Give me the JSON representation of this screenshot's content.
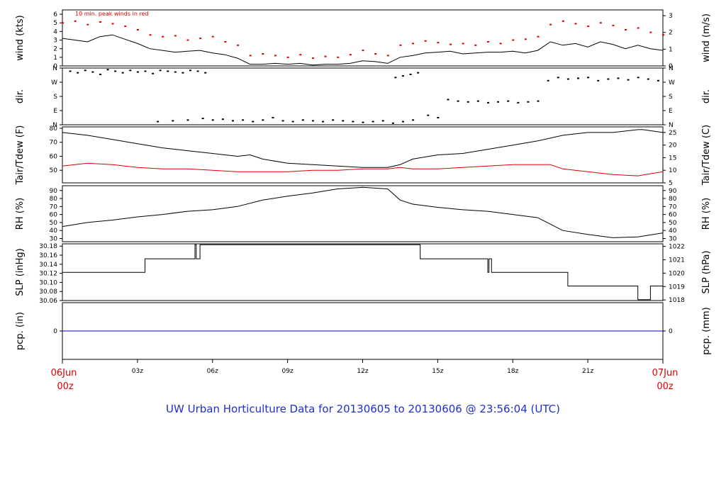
{
  "title": "UW Urban Horticulture Data for 20130605  to  20130606 @ 23:56:04  (UTC)",
  "annotation": "10 min. peak winds in red",
  "x_axis": {
    "start_label_top": "06Jun",
    "start_label_bottom": "00z",
    "end_label_top": "07Jun",
    "end_label_bottom": "00z",
    "ticks": [
      "03z",
      "06z",
      "09z",
      "12z",
      "15z",
      "18z",
      "21z"
    ],
    "tick_hours": [
      3,
      6,
      9,
      12,
      15,
      18,
      21
    ],
    "range_hours": [
      0,
      24
    ]
  },
  "colors": {
    "black": "#000000",
    "red": "#dd0000",
    "blue": "#0000cc",
    "title": "#1f2fd0",
    "date": "#dd0000"
  },
  "chart_data": [
    {
      "type": "line",
      "id": "wind",
      "ylabel_left": "wind (kts)",
      "ylabel_right": "wind (m/s)",
      "ylim": [
        0,
        6.5
      ],
      "yticks_left": [
        "0",
        "1",
        "2",
        "3",
        "4",
        "5",
        "6"
      ],
      "yticks_left_values": [
        0,
        1,
        2,
        3,
        4,
        5,
        6
      ],
      "yticks_right": [
        "0",
        "1",
        "2",
        "3"
      ],
      "yticks_right_values_kts": [
        0,
        1.944,
        3.888,
        5.832
      ],
      "series": [
        {
          "role": "mean",
          "color": "#000000",
          "x": [
            0,
            0.5,
            1,
            1.5,
            2,
            2.5,
            3,
            3.5,
            4,
            4.5,
            5,
            5.5,
            6,
            6.5,
            7,
            7.5,
            8,
            8.5,
            9,
            9.5,
            10,
            10.5,
            11,
            11.5,
            12,
            12.5,
            13,
            13.5,
            14,
            14.5,
            15,
            15.5,
            16,
            16.5,
            17,
            17.5,
            18,
            18.5,
            19,
            19.5,
            20,
            20.5,
            21,
            21.5,
            22,
            22.5,
            23,
            23.5,
            24
          ],
          "y": [
            3.2,
            3.0,
            2.8,
            3.4,
            3.6,
            3.1,
            2.6,
            2.0,
            1.8,
            1.6,
            1.7,
            1.8,
            1.5,
            1.3,
            0.9,
            0.2,
            0.2,
            0.3,
            0.2,
            0.3,
            0.1,
            0.2,
            0.2,
            0.3,
            0.6,
            0.5,
            0.3,
            1.0,
            1.2,
            1.5,
            1.6,
            1.7,
            1.4,
            1.5,
            1.6,
            1.6,
            1.7,
            1.5,
            1.8,
            2.8,
            2.4,
            2.6,
            2.2,
            2.8,
            2.5,
            2.0,
            2.4,
            2.0,
            1.8
          ]
        },
        {
          "role": "peak",
          "color": "#dd0000",
          "x": [
            0,
            0.5,
            1,
            1.5,
            2,
            2.5,
            3,
            3.5,
            4,
            4.5,
            5,
            5.5,
            6,
            6.5,
            7,
            7.5,
            8,
            8.5,
            9,
            9.5,
            10,
            10.5,
            11,
            11.5,
            12,
            12.5,
            13,
            13.5,
            14,
            14.5,
            15,
            15.5,
            16,
            16.5,
            17,
            17.5,
            18,
            18.5,
            19,
            19.5,
            20,
            20.5,
            21,
            21.5,
            22,
            22.5,
            23,
            23.5,
            24
          ],
          "y": [
            5.0,
            5.2,
            4.8,
            5.1,
            4.9,
            4.6,
            4.2,
            3.6,
            3.4,
            3.5,
            3.0,
            3.2,
            3.4,
            2.8,
            2.4,
            1.2,
            1.4,
            1.2,
            1.0,
            1.3,
            0.9,
            1.1,
            1.0,
            1.3,
            1.8,
            1.4,
            1.2,
            2.4,
            2.6,
            2.9,
            2.7,
            2.5,
            2.6,
            2.4,
            2.8,
            2.6,
            3.0,
            3.1,
            3.4,
            4.8,
            5.2,
            4.9,
            4.6,
            5.0,
            4.7,
            4.2,
            4.4,
            3.9,
            3.6
          ]
        }
      ]
    },
    {
      "type": "scatter",
      "id": "dir",
      "ylabel_left": "dir.",
      "ylabel_right": "dir.",
      "ylim": [
        0,
        360
      ],
      "yticks": [
        "N",
        "W",
        "S",
        "E",
        "N"
      ],
      "yticks_values": [
        360,
        270,
        180,
        90,
        0
      ],
      "series": [
        {
          "color": "#000000",
          "x": [
            0.3,
            0.6,
            0.9,
            1.2,
            1.5,
            1.8,
            2.1,
            2.4,
            2.7,
            3.0,
            3.3,
            3.6,
            3.9,
            4.2,
            4.5,
            4.8,
            5.1,
            5.4,
            5.7,
            3.8,
            4.4,
            5.0,
            5.6,
            6.0,
            6.4,
            6.8,
            7.2,
            7.6,
            8.0,
            8.4,
            8.8,
            9.2,
            9.6,
            10.0,
            10.4,
            10.8,
            11.2,
            11.6,
            12.0,
            12.4,
            12.8,
            13.2,
            13.6,
            14.0,
            13.3,
            13.6,
            13.9,
            14.2,
            14.6,
            15.0,
            15.4,
            15.8,
            16.2,
            16.6,
            17.0,
            17.4,
            17.8,
            18.2,
            18.6,
            19.0,
            19.4,
            19.8,
            20.2,
            20.6,
            21.0,
            21.4,
            21.8,
            22.2,
            22.6,
            23.0,
            23.4,
            23.8
          ],
          "y": [
            340,
            330,
            345,
            335,
            320,
            350,
            340,
            330,
            345,
            335,
            340,
            325,
            345,
            340,
            335,
            330,
            345,
            340,
            330,
            20,
            25,
            30,
            40,
            30,
            35,
            25,
            30,
            20,
            30,
            45,
            25,
            20,
            30,
            25,
            20,
            30,
            25,
            20,
            15,
            20,
            25,
            10,
            20,
            30,
            300,
            310,
            320,
            330,
            60,
            45,
            160,
            150,
            145,
            150,
            140,
            145,
            150,
            140,
            145,
            150,
            280,
            300,
            290,
            295,
            300,
            280,
            290,
            295,
            285,
            300,
            290,
            280
          ]
        }
      ]
    },
    {
      "type": "line",
      "id": "temp",
      "ylabel_left": "Tair/Tdew (F)",
      "ylabel_right": "Tair/Tdew (C)",
      "ylim": [
        41,
        81
      ],
      "yticks_left": [
        "50",
        "60",
        "70",
        "80"
      ],
      "yticks_left_values": [
        50,
        60,
        70,
        80
      ],
      "yticks_right": [
        "5",
        "10",
        "15",
        "20",
        "25"
      ],
      "yticks_right_values_f": [
        41,
        50,
        59,
        68,
        77
      ],
      "series": [
        {
          "role": "Tair",
          "color": "#000000",
          "x": [
            0,
            1,
            2,
            3,
            4,
            5,
            6,
            7,
            7.5,
            8,
            9,
            10,
            11,
            12,
            13,
            13.5,
            14,
            15,
            16,
            17,
            18,
            19,
            20,
            21,
            22,
            23,
            23.2,
            24
          ],
          "y": [
            77,
            75,
            72,
            69,
            66,
            64,
            62,
            60,
            61,
            58,
            55,
            54,
            53,
            52,
            52,
            54,
            58,
            61,
            62,
            65,
            68,
            71,
            75,
            77,
            77,
            79,
            79,
            77
          ]
        },
        {
          "role": "Tdew",
          "color": "#dd0000",
          "x": [
            0,
            1,
            2,
            3,
            4,
            5,
            6,
            7,
            8,
            9,
            10,
            11,
            12,
            13,
            13.5,
            14,
            15,
            16,
            17,
            18,
            19,
            19.5,
            20,
            21,
            22,
            23,
            24
          ],
          "y": [
            53,
            55,
            54,
            52,
            51,
            51,
            50,
            49,
            49,
            49,
            50,
            50,
            51,
            51,
            52,
            51,
            51,
            52,
            53,
            54,
            54,
            54,
            51,
            49,
            47,
            46,
            49
          ]
        }
      ]
    },
    {
      "type": "line",
      "id": "rh",
      "ylabel_left": "RH (%)",
      "ylabel_right": "RH (%)",
      "ylim": [
        26,
        96
      ],
      "yticks": [
        "30",
        "40",
        "50",
        "60",
        "70",
        "80",
        "90"
      ],
      "yticks_values": [
        30,
        40,
        50,
        60,
        70,
        80,
        90
      ],
      "series": [
        {
          "color": "#000000",
          "x": [
            0,
            1,
            2,
            3,
            4,
            5,
            6,
            7,
            8,
            9,
            10,
            11,
            12,
            13,
            13.5,
            14,
            15,
            16,
            17,
            18,
            19,
            19.5,
            20,
            21,
            22,
            23,
            24
          ],
          "y": [
            45,
            50,
            53,
            57,
            60,
            64,
            66,
            70,
            78,
            83,
            87,
            92,
            94,
            92,
            78,
            73,
            69,
            66,
            64,
            60,
            56,
            48,
            40,
            35,
            31,
            32,
            37
          ]
        }
      ]
    },
    {
      "type": "line",
      "id": "slp",
      "ylabel_left": "SLP (inHg)",
      "ylabel_right": "SLP (hPa)",
      "ylim": [
        30.06,
        30.185
      ],
      "yticks_left": [
        "30.06",
        "30.08",
        "30.10",
        "30.12",
        "30.14",
        "30.16",
        "30.18"
      ],
      "yticks_left_values": [
        30.06,
        30.08,
        30.1,
        30.12,
        30.14,
        30.16,
        30.18
      ],
      "yticks_right": [
        "1018",
        "1019",
        "1020",
        "1021",
        "1022"
      ],
      "yticks_right_values_inhg": [
        30.0613,
        30.0908,
        30.1204,
        30.1499,
        30.1794
      ],
      "series": [
        {
          "color": "#000000",
          "x": [
            0,
            3.3,
            3.3,
            5.3,
            5.3,
            5.35,
            5.35,
            5.5,
            5.5,
            5.55,
            5.55,
            14.3,
            14.3,
            17.0,
            17.0,
            17.05,
            17.05,
            17.15,
            17.15,
            17.2,
            17.2,
            20.2,
            20.2,
            23.0,
            23.0,
            23.5,
            23.5,
            24
          ],
          "y": [
            30.122,
            30.122,
            30.152,
            30.152,
            30.183,
            30.183,
            30.152,
            30.152,
            30.183,
            30.183,
            30.183,
            30.183,
            30.152,
            30.152,
            30.122,
            30.122,
            30.152,
            30.152,
            30.122,
            30.122,
            30.122,
            30.122,
            30.092,
            30.092,
            30.062,
            30.062,
            30.092,
            30.092
          ]
        }
      ]
    },
    {
      "type": "line",
      "id": "pcp",
      "ylabel_left": "pcp. (in)",
      "ylabel_right": "pcp. (mm)",
      "ylim": [
        -1,
        1
      ],
      "yticks_left": [
        "0"
      ],
      "yticks_right": [
        "0"
      ],
      "yticks_values": [
        0
      ],
      "series": [
        {
          "color": "#0000cc",
          "x": [
            0,
            24
          ],
          "y": [
            0,
            0
          ]
        }
      ]
    }
  ]
}
